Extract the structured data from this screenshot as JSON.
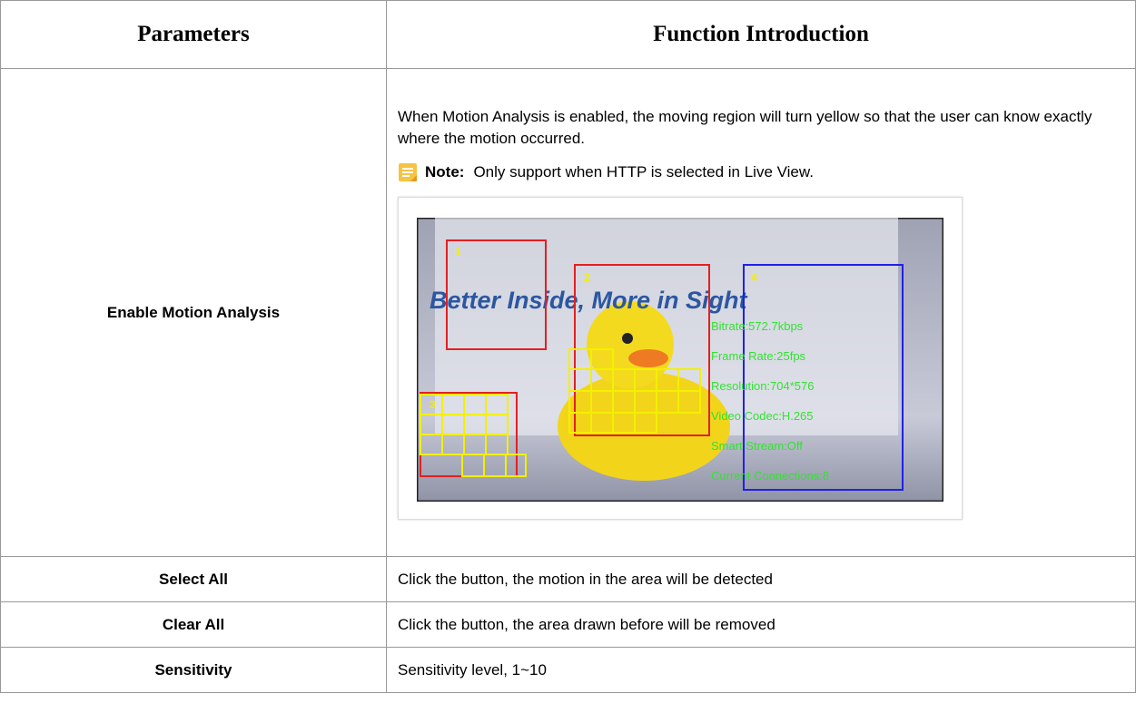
{
  "table": {
    "headers": [
      "Parameters",
      "Function Introduction"
    ],
    "rows": [
      {
        "parameter": "Enable Motion Analysis",
        "description": "When Motion Analysis is enabled, the moving region will turn yellow so that the user can know exactly where the motion occurred.",
        "note": {
          "label": "Note:",
          "text": "Only support when HTTP is selected in Live View."
        },
        "image": {
          "caption": "Better Inside, More in Sight",
          "regions": [
            "1",
            "2",
            "3",
            "4"
          ],
          "overlay": [
            "Bitrate:572.7kbps",
            "Frame Rate:25fps",
            "Resolution:704*576",
            "Video Codec:H.265",
            "Smart Stream:Off",
            "Current Connections:8"
          ]
        }
      },
      {
        "parameter": "Select All",
        "description": "Click the button, the motion in the area will be detected"
      },
      {
        "parameter": "Clear All",
        "description": "Click the button, the area drawn before will be removed"
      },
      {
        "parameter": "Sensitivity",
        "description": "Sensitivity level, 1~10"
      }
    ]
  }
}
